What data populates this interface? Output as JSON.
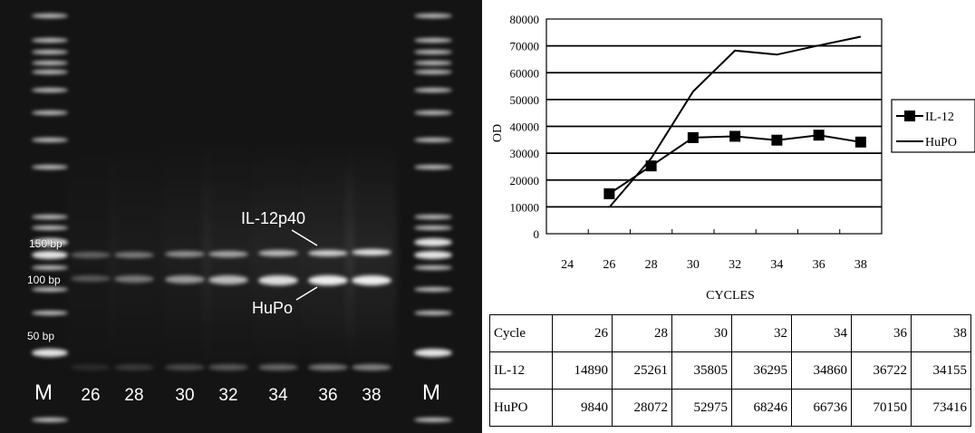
{
  "gel": {
    "marker_label": "M",
    "lane_labels": [
      "26",
      "28",
      "30",
      "32",
      "34",
      "36",
      "38"
    ],
    "size_labels": [
      "150 bp",
      "100 bp",
      "50 bp"
    ],
    "band_annotations": [
      "IL-12p40",
      "HuPo"
    ]
  },
  "chart_data": {
    "type": "line",
    "xlabel": "CYCLES",
    "ylabel": "OD",
    "categories": [
      "24",
      "26",
      "28",
      "30",
      "32",
      "34",
      "36",
      "38"
    ],
    "ylim": [
      0,
      80000
    ],
    "yticks": [
      0,
      10000,
      20000,
      30000,
      40000,
      50000,
      60000,
      70000,
      80000
    ],
    "grid": true,
    "legend_position": "right",
    "series": [
      {
        "name": "IL-12",
        "marker": "square",
        "x": [
          26,
          28,
          30,
          32,
          34,
          36,
          38
        ],
        "values": [
          14890,
          25261,
          35805,
          36295,
          34860,
          36722,
          34155
        ]
      },
      {
        "name": "HuPO",
        "marker": "none",
        "x": [
          26,
          28,
          30,
          32,
          34,
          36,
          38
        ],
        "values": [
          9840,
          28072,
          52975,
          68246,
          66736,
          70150,
          73416
        ]
      }
    ]
  },
  "table": {
    "rows": [
      [
        "Cycle",
        "26",
        "28",
        "30",
        "32",
        "34",
        "36",
        "38"
      ],
      [
        "IL-12",
        "14890",
        "25261",
        "35805",
        "36295",
        "34860",
        "36722",
        "34155"
      ],
      [
        "HuPO",
        "9840",
        "28072",
        "52975",
        "68246",
        "66736",
        "70150",
        "73416"
      ]
    ]
  }
}
